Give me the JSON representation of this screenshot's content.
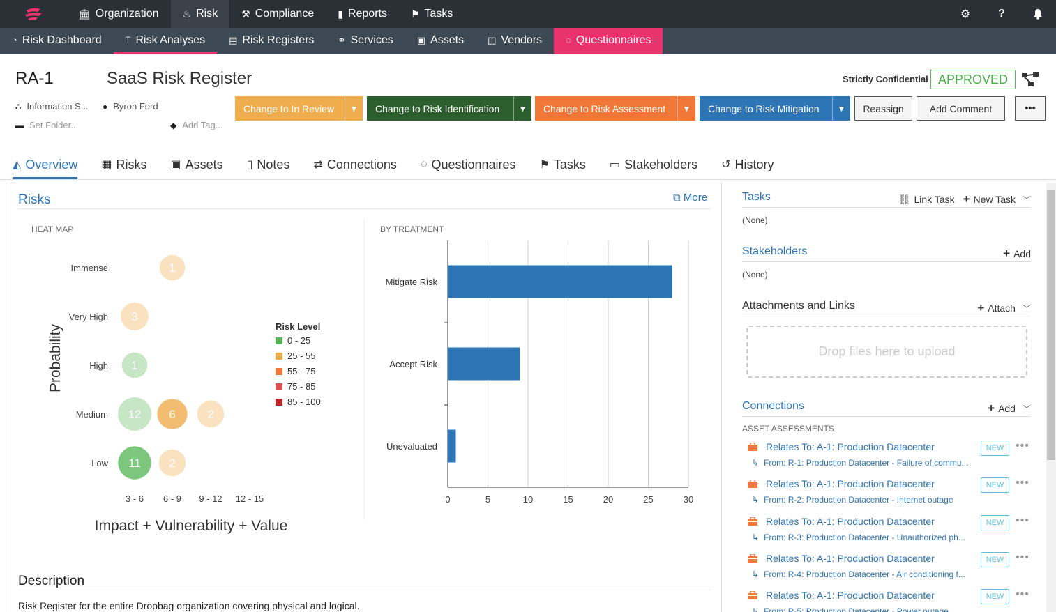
{
  "topnav": {
    "items": [
      {
        "label": "Organization",
        "icon": "bank-icon"
      },
      {
        "label": "Risk",
        "icon": "flame-icon"
      },
      {
        "label": "Compliance",
        "icon": "gavel-icon"
      },
      {
        "label": "Reports",
        "icon": "file-icon"
      },
      {
        "label": "Tasks",
        "icon": "flag-icon"
      }
    ],
    "right_icons": [
      "gear-icon",
      "help-icon",
      "bell-icon"
    ]
  },
  "subnav": {
    "items": [
      {
        "label": "Risk Dashboard",
        "icon": "dashboard-icon"
      },
      {
        "label": "Risk Analyses",
        "icon": "analysis-icon"
      },
      {
        "label": "Risk Registers",
        "icon": "register-icon"
      },
      {
        "label": "Services",
        "icon": "handshake-icon"
      },
      {
        "label": "Assets",
        "icon": "briefcase-icon"
      },
      {
        "label": "Vendors",
        "icon": "bag-icon"
      },
      {
        "label": "Questionnaires",
        "icon": "comment-icon"
      }
    ]
  },
  "record": {
    "id": "RA-1",
    "title": "SaaS Risk Register",
    "org": "Information S...",
    "owner": "Byron Ford",
    "folder_placeholder": "Set Folder...",
    "tag_placeholder": "Add Tag...",
    "classification": "Strictly Confidential",
    "status": "APPROVED"
  },
  "actions": {
    "review": "Change to In Review",
    "identification": "Change to Risk Identification",
    "assessment": "Change to Risk Assessment",
    "mitigation": "Change to Risk Mitigation",
    "reassign": "Reassign",
    "add_comment": "Add Comment",
    "more": "•••"
  },
  "colors": {
    "review": "#f0ad4e",
    "identification": "#2d5f2e",
    "assessment": "#f0793a",
    "mitigation": "#2e75b6",
    "accent": "#e8336f"
  },
  "tabs": [
    {
      "label": "Overview",
      "icon": "area-chart-icon"
    },
    {
      "label": "Risks",
      "icon": "table-icon"
    },
    {
      "label": "Assets",
      "icon": "briefcase-icon"
    },
    {
      "label": "Notes",
      "icon": "clipboard-icon"
    },
    {
      "label": "Connections",
      "icon": "exchange-icon"
    },
    {
      "label": "Questionnaires",
      "icon": "comment-icon"
    },
    {
      "label": "Tasks",
      "icon": "flag-icon"
    },
    {
      "label": "Stakeholders",
      "icon": "id-card-icon"
    },
    {
      "label": "History",
      "icon": "history-icon"
    }
  ],
  "risks_panel": {
    "title": "Risks",
    "more": "More",
    "heatmap_label": "HEAT MAP",
    "treatment_label": "BY TREATMENT"
  },
  "chart_data": [
    {
      "type": "heatmap",
      "title": "HEAT MAP",
      "ylabel": "Probability",
      "xlabel": "Impact + Vulnerability + Value",
      "y_categories": [
        "Immense",
        "Very High",
        "High",
        "Medium",
        "Low"
      ],
      "x_categories": [
        "3 - 6",
        "6 - 9",
        "9 - 12",
        "12 - 15"
      ],
      "cells": [
        {
          "y": "Immense",
          "x": "6 - 9",
          "count": 1,
          "level": "25 - 55",
          "faded": true
        },
        {
          "y": "Very High",
          "x": "3 - 6",
          "count": 3,
          "level": "25 - 55",
          "faded": true
        },
        {
          "y": "High",
          "x": "3 - 6",
          "count": 1,
          "level": "0 - 25",
          "faded": true
        },
        {
          "y": "Medium",
          "x": "3 - 6",
          "count": 12,
          "level": "0 - 25",
          "faded": true
        },
        {
          "y": "Medium",
          "x": "6 - 9",
          "count": 6,
          "level": "25 - 55",
          "faded": false
        },
        {
          "y": "Medium",
          "x": "9 - 12",
          "count": 2,
          "level": "25 - 55",
          "faded": true
        },
        {
          "y": "Low",
          "x": "3 - 6",
          "count": 11,
          "level": "0 - 25",
          "faded": false
        },
        {
          "y": "Low",
          "x": "6 - 9",
          "count": 2,
          "level": "25 - 55",
          "faded": true
        }
      ],
      "legend_title": "Risk Level",
      "legend": [
        {
          "label": "0 - 25",
          "color": "#5cb85c"
        },
        {
          "label": "25 - 55",
          "color": "#f0ad4e"
        },
        {
          "label": "55 - 75",
          "color": "#f0793a"
        },
        {
          "label": "75 - 85",
          "color": "#e05555"
        },
        {
          "label": "85 - 100",
          "color": "#c0282d"
        }
      ],
      "legend_placement": "right"
    },
    {
      "type": "bar",
      "orientation": "horizontal",
      "title": "BY TREATMENT",
      "categories": [
        "Mitigate Risk",
        "Accept Risk",
        "Unevaluated"
      ],
      "values": [
        28,
        9,
        1
      ],
      "xlim": [
        0,
        30
      ],
      "ticks": [
        0,
        5,
        10,
        15,
        20,
        25,
        30
      ],
      "grid": true,
      "color": "#2e75b6"
    }
  ],
  "description": {
    "heading": "Description",
    "text": "Risk Register for the entire Dropbag organization covering physical and logical."
  },
  "right": {
    "tasks": {
      "title": "Tasks",
      "link": "Link Task",
      "new": "New Task",
      "empty": "(None)"
    },
    "stakeholders": {
      "title": "Stakeholders",
      "add": "Add",
      "empty": "(None)"
    },
    "attachments": {
      "title": "Attachments and Links",
      "attach": "Attach",
      "drop": "Drop files here to upload"
    },
    "connections": {
      "title": "Connections",
      "add": "Add",
      "group": "ASSET ASSESSMENTS",
      "items": [
        {
          "title": "Relates To: A-1: Production Datacenter",
          "sub": "From: R-1: Production Datacenter - Failure of commu...",
          "badge": "NEW"
        },
        {
          "title": "Relates To: A-1: Production Datacenter",
          "sub": "From: R-2: Production Datacenter - Internet outage",
          "badge": "NEW"
        },
        {
          "title": "Relates To: A-1: Production Datacenter",
          "sub": "From: R-3: Production Datacenter - Unauthorized ph...",
          "badge": "NEW"
        },
        {
          "title": "Relates To: A-1: Production Datacenter",
          "sub": "From: R-4: Production Datacenter - Air conditioning f...",
          "badge": "NEW"
        },
        {
          "title": "Relates To: A-1: Production Datacenter",
          "sub": "From: R-5: Production Datacenter - Power outage",
          "badge": "NEW"
        }
      ]
    }
  }
}
